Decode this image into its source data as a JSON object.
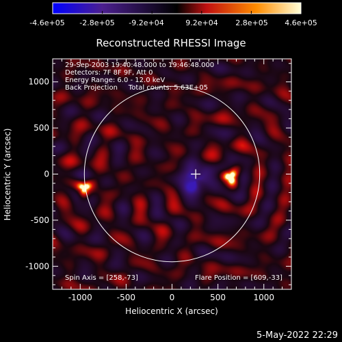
{
  "colorbar": {
    "tick_labels": [
      "-4.6e+05",
      "-2.8e+05",
      "-9.2e+04",
      "9.2e+04",
      "2.8e+05",
      "4.6e+05"
    ],
    "colors": [
      "#0000ff",
      "#4c1f8f",
      "#000000",
      "#c01010",
      "#ff8c00",
      "#ffffd8"
    ]
  },
  "plot": {
    "title": "Reconstructed RHESSI Image",
    "xlabel": "Heliocentric X (arcsec)",
    "ylabel": "Heliocentric Y (arcsec)",
    "xlim": [
      -1300,
      1300
    ],
    "ylim": [
      -1250,
      1250
    ],
    "x_ticks": [
      -1000,
      -500,
      0,
      500,
      1000
    ],
    "y_ticks": [
      -1000,
      -500,
      0,
      500,
      1000
    ],
    "solar_limb_radius": 955,
    "cross_marker": [
      258,
      0
    ]
  },
  "info": {
    "line1": "29-Sep-2003 19:40:48.000 to 19:46:48.000",
    "line2": "Detectors: 7F 8F 9F, Att 0",
    "line3": "Energy Range: 6.0 - 12.0 keV",
    "line4": "Back Projection     Total counts: 5.63E+05",
    "spin_axis": "Spin Axis = [258,-73]",
    "flare_position": "Flare Position = [609,-33]"
  },
  "footer": {
    "date": "5-May-2022 22:29"
  },
  "features": [
    {
      "x": -960,
      "y": -150,
      "amp": 1.0,
      "sigma": 60
    },
    {
      "x": 640,
      "y": -30,
      "amp": 1.0,
      "sigma": 60
    },
    {
      "x": 258,
      "y": -60,
      "amp": -1.0,
      "sigma": 110
    }
  ]
}
